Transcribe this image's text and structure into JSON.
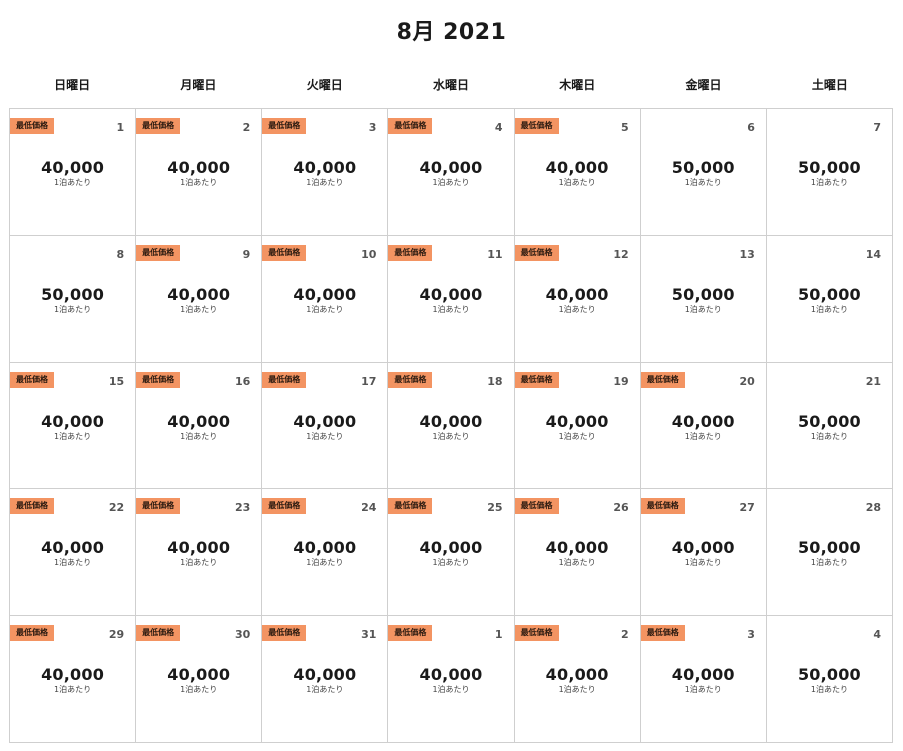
{
  "calendar": {
    "title": "8月 2021",
    "weekdays": [
      "日曜日",
      "月曜日",
      "火曜日",
      "水曜日",
      "木曜日",
      "金曜日",
      "土曜日"
    ],
    "badge_label": "最低価格",
    "per_night_label": "1泊あたり",
    "colors": {
      "badge": "#f39462",
      "border": "#cfcfcf",
      "text": "#1a1a1a"
    },
    "weeks": [
      [
        {
          "day": "1",
          "price": "40,000",
          "lowest": true
        },
        {
          "day": "2",
          "price": "40,000",
          "lowest": true
        },
        {
          "day": "3",
          "price": "40,000",
          "lowest": true
        },
        {
          "day": "4",
          "price": "40,000",
          "lowest": true
        },
        {
          "day": "5",
          "price": "40,000",
          "lowest": true
        },
        {
          "day": "6",
          "price": "50,000",
          "lowest": false
        },
        {
          "day": "7",
          "price": "50,000",
          "lowest": false
        }
      ],
      [
        {
          "day": "8",
          "price": "50,000",
          "lowest": false
        },
        {
          "day": "9",
          "price": "40,000",
          "lowest": true
        },
        {
          "day": "10",
          "price": "40,000",
          "lowest": true
        },
        {
          "day": "11",
          "price": "40,000",
          "lowest": true
        },
        {
          "day": "12",
          "price": "40,000",
          "lowest": true
        },
        {
          "day": "13",
          "price": "50,000",
          "lowest": false
        },
        {
          "day": "14",
          "price": "50,000",
          "lowest": false
        }
      ],
      [
        {
          "day": "15",
          "price": "40,000",
          "lowest": true
        },
        {
          "day": "16",
          "price": "40,000",
          "lowest": true
        },
        {
          "day": "17",
          "price": "40,000",
          "lowest": true
        },
        {
          "day": "18",
          "price": "40,000",
          "lowest": true
        },
        {
          "day": "19",
          "price": "40,000",
          "lowest": true
        },
        {
          "day": "20",
          "price": "40,000",
          "lowest": true
        },
        {
          "day": "21",
          "price": "50,000",
          "lowest": false
        }
      ],
      [
        {
          "day": "22",
          "price": "40,000",
          "lowest": true
        },
        {
          "day": "23",
          "price": "40,000",
          "lowest": true
        },
        {
          "day": "24",
          "price": "40,000",
          "lowest": true
        },
        {
          "day": "25",
          "price": "40,000",
          "lowest": true
        },
        {
          "day": "26",
          "price": "40,000",
          "lowest": true
        },
        {
          "day": "27",
          "price": "40,000",
          "lowest": true
        },
        {
          "day": "28",
          "price": "50,000",
          "lowest": false
        }
      ],
      [
        {
          "day": "29",
          "price": "40,000",
          "lowest": true
        },
        {
          "day": "30",
          "price": "40,000",
          "lowest": true
        },
        {
          "day": "31",
          "price": "40,000",
          "lowest": true
        },
        {
          "day": "1",
          "price": "40,000",
          "lowest": true
        },
        {
          "day": "2",
          "price": "40,000",
          "lowest": true
        },
        {
          "day": "3",
          "price": "40,000",
          "lowest": true
        },
        {
          "day": "4",
          "price": "50,000",
          "lowest": false
        }
      ]
    ]
  }
}
